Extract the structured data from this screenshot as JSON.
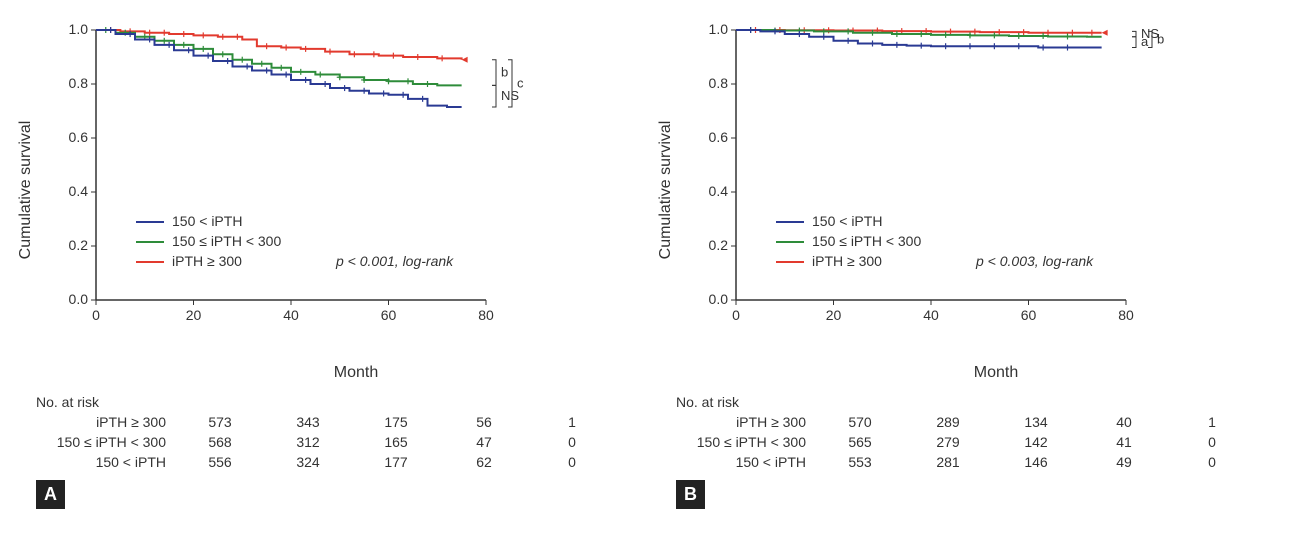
{
  "global": {
    "font_family": "Arial",
    "axis_color": "#333333",
    "tick_fontsize": 14,
    "label_fontsize": 16,
    "legend_fontsize": 14,
    "line_width": 2,
    "censor_marker": "+",
    "censor_marker_size": 7
  },
  "series_info": {
    "s1": {
      "label": "150 < iPTH",
      "color": "#2a3a93"
    },
    "s2": {
      "label": "150 ≤ iPTH < 300",
      "color": "#2e8c3a"
    },
    "s3": {
      "label": "iPTH ≥ 300",
      "color": "#e23a2e"
    }
  },
  "panels": {
    "A": {
      "letter": "A",
      "ylabel": "Cumulative survival",
      "xlabel": "Month",
      "xlim": [
        0,
        80
      ],
      "xtick_step": 20,
      "ylim": [
        0,
        1.0
      ],
      "ytick_step": 0.2,
      "pvalue_text": "p < 0.001, log-rank",
      "brackets": [
        {
          "pairs": [
            "s3",
            "s2"
          ],
          "label": "b",
          "y_top": 0.89,
          "y_bot": 0.795,
          "x": 82
        },
        {
          "pairs": [
            "s2",
            "s1"
          ],
          "label": "NS",
          "y_top": 0.795,
          "y_bot": 0.715,
          "x": 82
        },
        {
          "pairs": [
            "s3",
            "s1"
          ],
          "label": "c",
          "y_top": 0.89,
          "y_bot": 0.715,
          "x": 90
        }
      ],
      "curves": {
        "s3": [
          [
            0,
            1.0
          ],
          [
            5,
            0.995
          ],
          [
            10,
            0.99
          ],
          [
            15,
            0.985
          ],
          [
            20,
            0.98
          ],
          [
            25,
            0.975
          ],
          [
            30,
            0.965
          ],
          [
            33,
            0.94
          ],
          [
            38,
            0.935
          ],
          [
            42,
            0.93
          ],
          [
            47,
            0.92
          ],
          [
            52,
            0.91
          ],
          [
            58,
            0.905
          ],
          [
            63,
            0.9
          ],
          [
            70,
            0.895
          ],
          [
            75,
            0.89
          ]
        ],
        "s2": [
          [
            0,
            1.0
          ],
          [
            4,
            0.99
          ],
          [
            8,
            0.975
          ],
          [
            12,
            0.96
          ],
          [
            16,
            0.945
          ],
          [
            20,
            0.93
          ],
          [
            24,
            0.91
          ],
          [
            28,
            0.89
          ],
          [
            32,
            0.875
          ],
          [
            36,
            0.86
          ],
          [
            40,
            0.845
          ],
          [
            45,
            0.835
          ],
          [
            50,
            0.825
          ],
          [
            55,
            0.815
          ],
          [
            60,
            0.81
          ],
          [
            65,
            0.8
          ],
          [
            70,
            0.795
          ],
          [
            75,
            0.795
          ]
        ],
        "s1": [
          [
            0,
            1.0
          ],
          [
            4,
            0.985
          ],
          [
            8,
            0.965
          ],
          [
            12,
            0.945
          ],
          [
            16,
            0.925
          ],
          [
            20,
            0.905
          ],
          [
            24,
            0.885
          ],
          [
            28,
            0.865
          ],
          [
            32,
            0.85
          ],
          [
            36,
            0.835
          ],
          [
            40,
            0.815
          ],
          [
            44,
            0.8
          ],
          [
            48,
            0.785
          ],
          [
            52,
            0.775
          ],
          [
            56,
            0.765
          ],
          [
            60,
            0.76
          ],
          [
            64,
            0.745
          ],
          [
            68,
            0.72
          ],
          [
            72,
            0.715
          ],
          [
            75,
            0.715
          ]
        ]
      },
      "censor_ticks": {
        "s3": [
          3,
          7,
          11,
          14,
          18,
          22,
          26,
          29,
          35,
          39,
          43,
          48,
          53,
          57,
          61,
          66,
          71
        ],
        "s2": [
          2,
          6,
          10,
          14,
          18,
          22,
          26,
          30,
          34,
          38,
          42,
          46,
          50,
          55,
          60,
          64,
          68
        ],
        "s1": [
          3,
          7,
          11,
          15,
          19,
          23,
          27,
          31,
          35,
          39,
          43,
          47,
          51,
          55,
          59,
          63,
          67
        ]
      },
      "risk_header": "No. at risk",
      "risk_x": [
        0,
        20,
        40,
        60,
        80
      ],
      "risk_rows": [
        {
          "label": "iPTH ≥ 300",
          "values": [
            573,
            343,
            175,
            56,
            1
          ]
        },
        {
          "label": "150 ≤ iPTH < 300",
          "values": [
            568,
            312,
            165,
            47,
            0
          ]
        },
        {
          "label": "150 < iPTH",
          "values": [
            556,
            324,
            177,
            62,
            0
          ]
        }
      ]
    },
    "B": {
      "letter": "B",
      "ylabel": "Cumulative survival",
      "xlabel": "Month",
      "xlim": [
        0,
        80
      ],
      "xtick_step": 20,
      "ylim": [
        0,
        1.0
      ],
      "ytick_step": 0.2,
      "pvalue_text": "p < 0.003, log-rank",
      "brackets": [
        {
          "pairs": [
            "s3",
            "s2"
          ],
          "label": "NS",
          "y_top": 0.995,
          "y_bot": 0.975,
          "x": 82
        },
        {
          "pairs": [
            "s2",
            "s1"
          ],
          "label": "a",
          "y_top": 0.975,
          "y_bot": 0.935,
          "x": 82
        },
        {
          "pairs": [
            "s3",
            "s1"
          ],
          "label": "b",
          "y_top": 0.995,
          "y_bot": 0.935,
          "x": 90
        }
      ],
      "curves": {
        "s3": [
          [
            0,
            1.0
          ],
          [
            10,
            0.999
          ],
          [
            20,
            0.998
          ],
          [
            30,
            0.996
          ],
          [
            40,
            0.994
          ],
          [
            50,
            0.992
          ],
          [
            60,
            0.99
          ],
          [
            70,
            0.99
          ],
          [
            75,
            0.99
          ]
        ],
        "s2": [
          [
            0,
            1.0
          ],
          [
            8,
            0.998
          ],
          [
            16,
            0.995
          ],
          [
            24,
            0.99
          ],
          [
            32,
            0.985
          ],
          [
            40,
            0.982
          ],
          [
            48,
            0.98
          ],
          [
            56,
            0.978
          ],
          [
            64,
            0.976
          ],
          [
            72,
            0.975
          ],
          [
            75,
            0.975
          ]
        ],
        "s1": [
          [
            0,
            1.0
          ],
          [
            5,
            0.995
          ],
          [
            10,
            0.985
          ],
          [
            15,
            0.975
          ],
          [
            20,
            0.96
          ],
          [
            25,
            0.95
          ],
          [
            30,
            0.945
          ],
          [
            35,
            0.942
          ],
          [
            40,
            0.94
          ],
          [
            50,
            0.94
          ],
          [
            55,
            0.94
          ],
          [
            62,
            0.935
          ],
          [
            70,
            0.935
          ],
          [
            75,
            0.935
          ]
        ]
      },
      "censor_ticks": {
        "s3": [
          4,
          9,
          14,
          19,
          24,
          29,
          34,
          39,
          44,
          49,
          54,
          59,
          64,
          69,
          73
        ],
        "s2": [
          3,
          8,
          13,
          18,
          23,
          28,
          33,
          38,
          43,
          48,
          53,
          58,
          63,
          68
        ],
        "s1": [
          3,
          8,
          13,
          18,
          23,
          28,
          33,
          38,
          43,
          48,
          53,
          58,
          63,
          68
        ]
      },
      "risk_header": "No. at risk",
      "risk_x": [
        0,
        20,
        40,
        60,
        80
      ],
      "risk_rows": [
        {
          "label": "iPTH ≥ 300",
          "values": [
            570,
            289,
            134,
            40,
            1
          ]
        },
        {
          "label": "150 ≤ iPTH < 300",
          "values": [
            565,
            279,
            142,
            41,
            0
          ]
        },
        {
          "label": "150 < iPTH",
          "values": [
            553,
            281,
            146,
            49,
            0
          ]
        }
      ]
    }
  }
}
